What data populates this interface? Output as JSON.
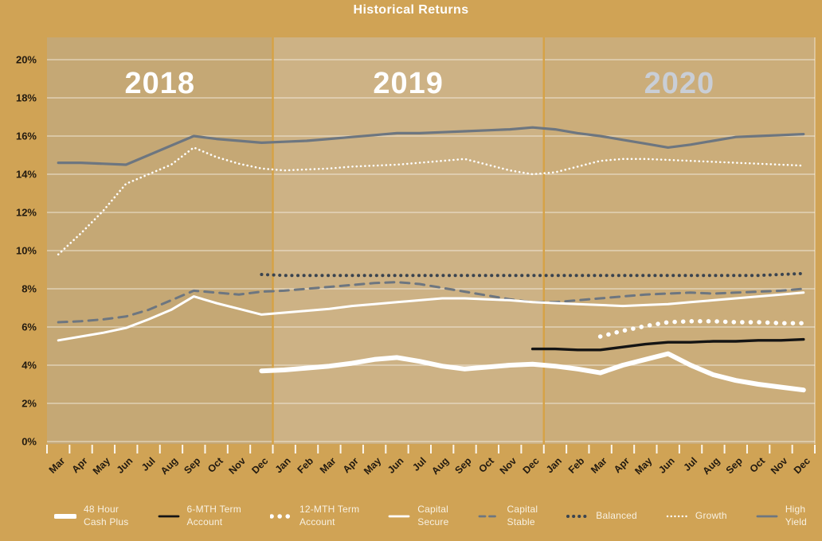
{
  "title": "Historical Returns",
  "colors": {
    "background": "#d0a355",
    "divider": "#d6a246",
    "gridline": "rgba(255,255,255,0.55)",
    "panel_edge": "rgba(255,255,255,0.45)",
    "axis_text": "#221a10",
    "legend_text": "#f8f1e2",
    "slate": "#6d7680",
    "navy": "#3a4450",
    "black": "#141414",
    "white": "#ffffff"
  },
  "chart_data": {
    "type": "line",
    "title": "Historical Returns",
    "categories": [
      "Mar",
      "Apr",
      "May",
      "Jun",
      "Jul",
      "Aug",
      "Sep",
      "Oct",
      "Nov",
      "Dec",
      "Jan",
      "Feb",
      "Mar",
      "Apr",
      "May",
      "Jun",
      "Jul",
      "Aug",
      "Sep",
      "Oct",
      "Nov",
      "Dec",
      "Jan",
      "Feb",
      "Mar",
      "Apr",
      "May",
      "Jun",
      "Jul",
      "Aug",
      "Sep",
      "Oct",
      "Nov",
      "Dec"
    ],
    "year_bands": [
      {
        "label": "2018",
        "months": 10,
        "fill": "#c5a875",
        "label_color": "#ffffff"
      },
      {
        "label": "2019",
        "months": 12,
        "fill": "#cdb285",
        "label_color": "#ffffff"
      },
      {
        "label": "2020",
        "months": 12,
        "fill": "#cbad7a",
        "label_color": "#c9ced6"
      }
    ],
    "y_axis": {
      "min": 0,
      "max": 20,
      "step": 2,
      "unit": "%",
      "tick_labels": [
        "20%",
        "18%",
        "16%",
        "14%",
        "12%",
        "10%",
        "8%",
        "6%",
        "4%",
        "2%",
        "0%"
      ]
    },
    "grid": true,
    "legend_position": "bottom",
    "series": [
      {
        "name": "High Yield",
        "key": "high_yield",
        "start_index": 0,
        "color": "#6d7680",
        "line": "solid",
        "width": 3.2,
        "values": [
          14.6,
          14.6,
          14.55,
          14.5,
          15.0,
          15.5,
          16.0,
          15.85,
          15.75,
          15.65,
          15.7,
          15.75,
          15.85,
          15.95,
          16.05,
          16.15,
          16.15,
          16.2,
          16.25,
          16.3,
          16.35,
          16.45,
          16.35,
          16.15,
          16.0,
          15.8,
          15.6,
          15.4,
          15.55,
          15.75,
          15.95,
          16.0,
          16.05,
          16.1
        ]
      },
      {
        "name": "Growth",
        "key": "growth",
        "start_index": 0,
        "color": "#ffffff",
        "line": "dotted-small",
        "width": 2.6,
        "values": [
          9.8,
          10.9,
          12.1,
          13.5,
          14.0,
          14.5,
          15.4,
          14.9,
          14.55,
          14.3,
          14.2,
          14.25,
          14.3,
          14.4,
          14.45,
          14.5,
          14.6,
          14.7,
          14.8,
          14.5,
          14.2,
          14.0,
          14.1,
          14.4,
          14.7,
          14.8,
          14.8,
          14.75,
          14.7,
          14.65,
          14.6,
          14.55,
          14.5,
          14.45
        ]
      },
      {
        "name": "Capital Stable",
        "key": "capital_stable",
        "start_index": 0,
        "color": "#6d7680",
        "line": "dashed",
        "width": 3,
        "values": [
          6.25,
          6.3,
          6.4,
          6.55,
          6.9,
          7.4,
          7.9,
          7.8,
          7.7,
          7.85,
          7.9,
          8.0,
          8.1,
          8.2,
          8.3,
          8.35,
          8.25,
          8.05,
          7.85,
          7.65,
          7.45,
          7.3,
          7.3,
          7.4,
          7.5,
          7.6,
          7.7,
          7.75,
          7.8,
          7.75,
          7.8,
          7.85,
          7.9,
          8.0
        ]
      },
      {
        "name": "Capital Secure",
        "key": "capital_secure",
        "start_index": 0,
        "color": "#ffffff",
        "line": "solid",
        "width": 3,
        "values": [
          5.3,
          5.5,
          5.7,
          5.95,
          6.4,
          6.9,
          7.6,
          7.25,
          6.95,
          6.65,
          6.75,
          6.85,
          6.95,
          7.1,
          7.2,
          7.3,
          7.4,
          7.5,
          7.5,
          7.45,
          7.4,
          7.3,
          7.25,
          7.2,
          7.15,
          7.1,
          7.15,
          7.2,
          7.3,
          7.4,
          7.5,
          7.6,
          7.7,
          7.8
        ]
      },
      {
        "name": "Balanced",
        "key": "balanced",
        "start_index": 9,
        "color": "#3a4450",
        "line": "dotted",
        "width": 4,
        "values": [
          8.75,
          8.7,
          8.7,
          8.7,
          8.7,
          8.7,
          8.7,
          8.7,
          8.7,
          8.7,
          8.7,
          8.7,
          8.7,
          8.7,
          8.7,
          8.7,
          8.7,
          8.7,
          8.7,
          8.7,
          8.7,
          8.7,
          8.7,
          8.75,
          8.8
        ]
      },
      {
        "name": "48 Hour Cash Plus",
        "key": "cash_plus_48h",
        "start_index": 9,
        "color": "#ffffff",
        "line": "solid-thick",
        "width": 6,
        "values": [
          3.7,
          3.75,
          3.85,
          3.95,
          4.1,
          4.3,
          4.4,
          4.2,
          3.95,
          3.8,
          3.9,
          4.0,
          4.05,
          3.95,
          3.8,
          3.6,
          4.0,
          4.3,
          4.6,
          4.0,
          3.5,
          3.2,
          3.0,
          2.85,
          2.7
        ]
      },
      {
        "name": "6-MTH Term Account",
        "key": "term_6mth",
        "start_index": 21,
        "color": "#141414",
        "line": "solid",
        "width": 3.4,
        "values": [
          4.85,
          4.85,
          4.8,
          4.8,
          4.95,
          5.1,
          5.2,
          5.2,
          5.25,
          5.25,
          5.3,
          5.3,
          5.35
        ]
      },
      {
        "name": "12-MTH Term Account",
        "key": "term_12mth",
        "start_index": 24,
        "color": "#ffffff",
        "line": "dotted-large",
        "width": 5.5,
        "values": [
          5.5,
          5.8,
          6.05,
          6.25,
          6.3,
          6.3,
          6.25,
          6.25,
          6.2,
          6.2
        ]
      }
    ]
  },
  "legend": {
    "items": [
      {
        "key": "cash_plus_48h",
        "label": "48 Hour Cash Plus",
        "label_lines": [
          "48 Hour",
          "Cash Plus"
        ]
      },
      {
        "key": "term_6mth",
        "label": "6-MTH Term Account",
        "label_lines": [
          "6-MTH Term",
          "Account"
        ]
      },
      {
        "key": "term_12mth",
        "label": "12-MTH Term Account",
        "label_lines": [
          "12-MTH Term",
          "Account"
        ]
      },
      {
        "key": "capital_secure",
        "label": "Capital Secure",
        "label_lines": [
          "Capital",
          "Secure"
        ]
      },
      {
        "key": "capital_stable",
        "label": "Capital Stable",
        "label_lines": [
          "Capital",
          "Stable"
        ]
      },
      {
        "key": "balanced",
        "label": "Balanced",
        "label_lines": [
          "Balanced"
        ]
      },
      {
        "key": "growth",
        "label": "Growth",
        "label_lines": [
          "Growth"
        ]
      },
      {
        "key": "high_yield",
        "label": "High Yield",
        "label_lines": [
          "High",
          "Yield"
        ]
      }
    ]
  }
}
